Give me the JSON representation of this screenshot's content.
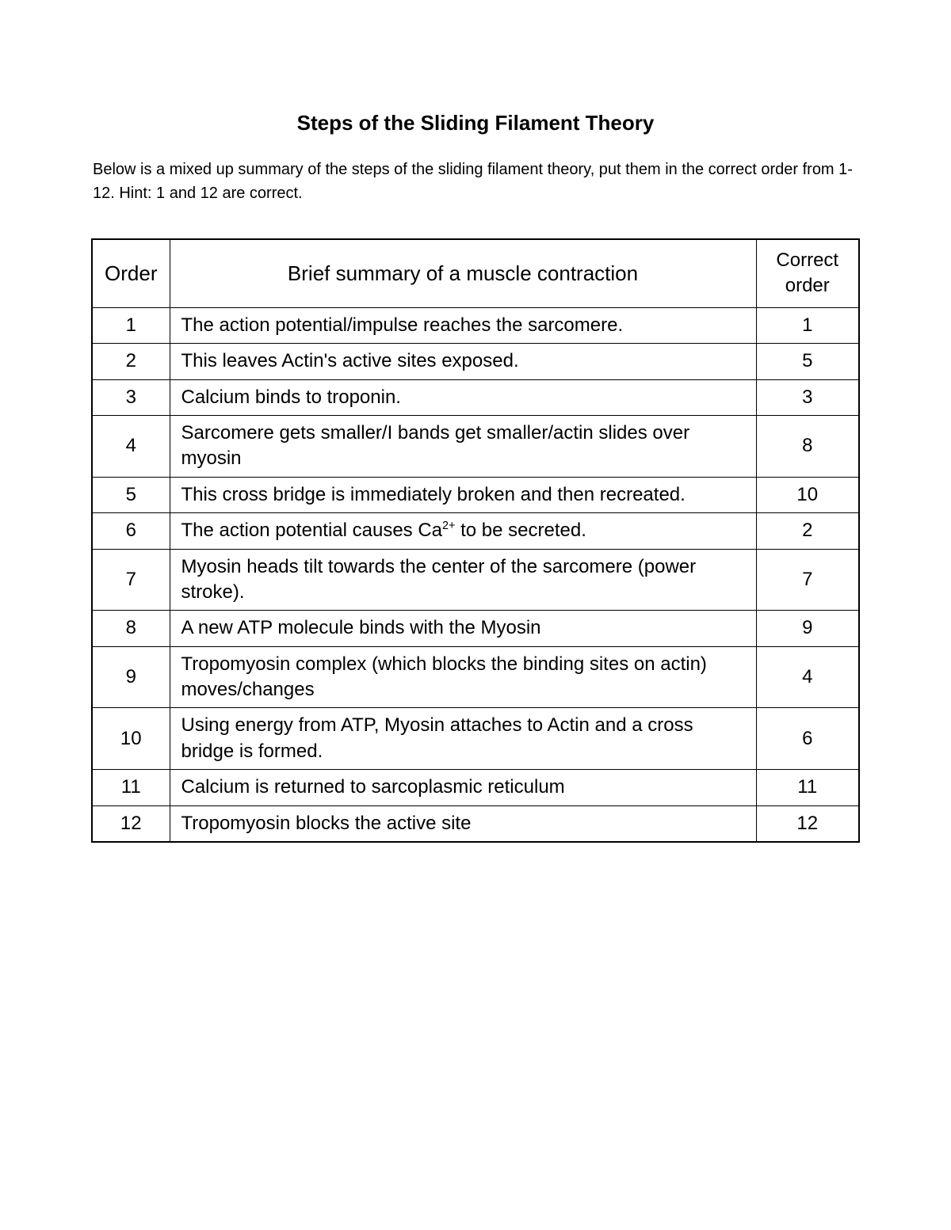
{
  "title": "Steps of the Sliding Filament Theory",
  "instructions": "Below is a mixed up summary of the steps of the sliding filament theory, put them in the correct order from 1-12. Hint: 1 and 12 are correct.",
  "table": {
    "columns": {
      "order": "Order",
      "summary": "Brief summary of a muscle contraction",
      "correct": "Correct order"
    },
    "rows": [
      {
        "order": "1",
        "summary": "The action potential/impulse reaches the sarcomere.",
        "correct": "1"
      },
      {
        "order": "2",
        "summary": "This leaves Actin's active sites exposed.",
        "correct": "5"
      },
      {
        "order": "3",
        "summary": "Calcium binds to troponin.",
        "correct": "3"
      },
      {
        "order": "4",
        "summary": "Sarcomere gets smaller/I bands get smaller/actin slides over myosin",
        "correct": "8"
      },
      {
        "order": "5",
        "summary": "This cross bridge is immediately broken and then recreated.",
        "correct": "10"
      },
      {
        "order": "6",
        "summary_html": "The action potential causes Ca<sup>2+</sup> to be secreted.",
        "correct": "2"
      },
      {
        "order": "7",
        "summary": "Myosin heads tilt towards the center of the sarcomere (power stroke).",
        "correct": "7"
      },
      {
        "order": "8",
        "summary": "A new ATP molecule binds with the Myosin",
        "correct": "9"
      },
      {
        "order": "9",
        "summary": "Tropomyosin complex (which blocks the binding sites on actin) moves/changes",
        "correct": "4"
      },
      {
        "order": "10",
        "summary": "Using energy from ATP, Myosin attaches to Actin and a cross bridge is formed.",
        "correct": "6"
      },
      {
        "order": "11",
        "summary": "Calcium is returned to sarcoplasmic reticulum",
        "correct": "11"
      },
      {
        "order": "12",
        "summary": "Tropomyosin blocks the active site",
        "correct": "12"
      }
    ],
    "header_fontsize": 26,
    "cell_fontsize": 24,
    "border_color": "#000000",
    "background_color": "#ffffff",
    "text_color": "#000000",
    "col_widths": {
      "order": 98,
      "correct": 130
    }
  }
}
